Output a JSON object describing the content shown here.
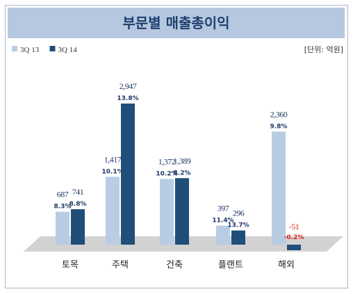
{
  "chart_data": {
    "type": "bar",
    "title": "부문별 매출총이익",
    "unit_note": "[단위: 억원]",
    "categories": [
      "토목",
      "주택",
      "건축",
      "플랜트",
      "해외"
    ],
    "series": [
      {
        "name": "3Q 13",
        "color": "#b8cce4",
        "values": [
          687,
          1417,
          1372,
          397,
          2360
        ],
        "value_labels": [
          "687",
          "1,417",
          "1,372",
          "397",
          "2,360"
        ],
        "margin_labels": [
          "8.3%",
          "10.1%",
          "10.2%",
          "11.4%",
          "9.8%"
        ]
      },
      {
        "name": "3Q 14",
        "color": "#1f4e79",
        "values": [
          741,
          2947,
          1389,
          296,
          -51
        ],
        "value_labels": [
          "741",
          "2,947",
          "1,389",
          "296",
          "-51"
        ],
        "margin_labels": [
          "8.8%",
          "13.8%",
          "8.2%",
          "13.7%",
          "-0.2%"
        ]
      }
    ],
    "negative_color": "#e0201c",
    "legend_position": "top-left",
    "grid": false
  }
}
